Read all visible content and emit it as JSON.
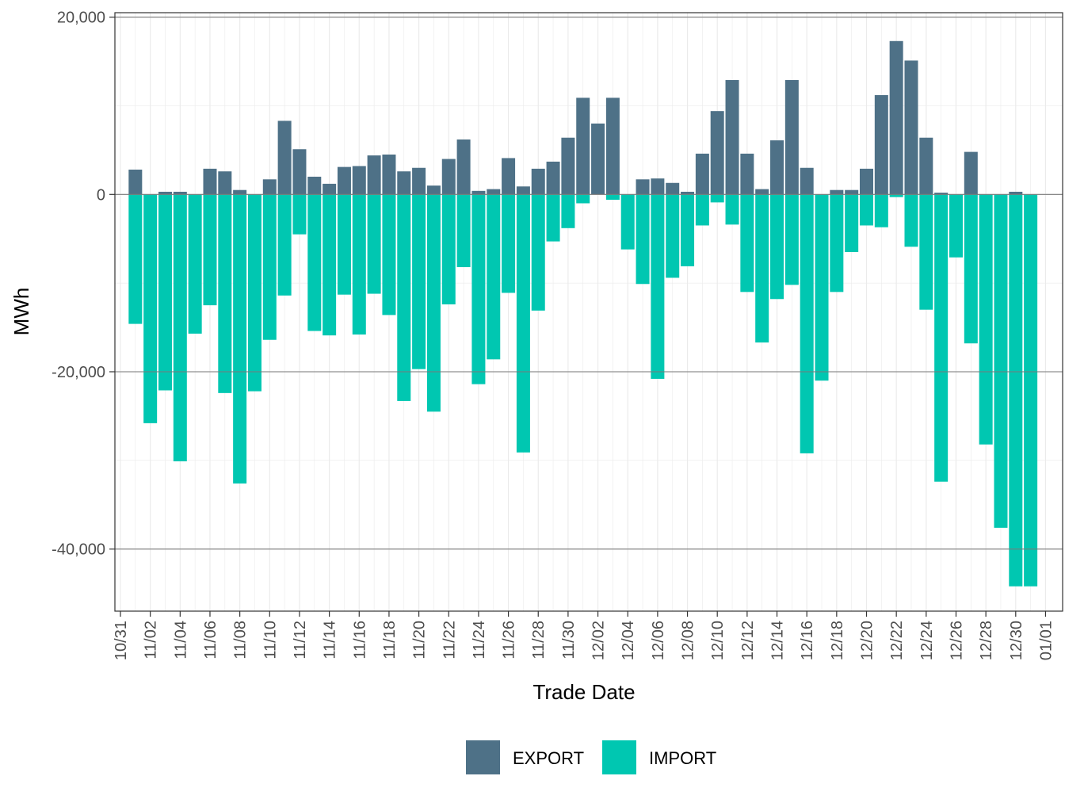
{
  "colors": {
    "export": "#4e7187",
    "import": "#00c7b1"
  },
  "chart_data": {
    "type": "bar",
    "title": "",
    "xlabel": "Trade Date",
    "ylabel": "MWh",
    "ylim": [
      -47000,
      20500
    ],
    "yticks": [
      20000,
      0,
      -20000,
      -40000
    ],
    "ytick_labels": [
      "20,000",
      "0",
      "-20,000",
      "-40,000"
    ],
    "xtick_labels": [
      "10/31",
      "11/02",
      "11/04",
      "11/06",
      "11/08",
      "11/10",
      "11/12",
      "11/14",
      "11/16",
      "11/18",
      "11/20",
      "11/22",
      "11/24",
      "11/26",
      "11/28",
      "11/30",
      "12/02",
      "12/04",
      "12/06",
      "12/08",
      "12/10",
      "12/12",
      "12/14",
      "12/16",
      "12/18",
      "12/20",
      "12/22",
      "12/24",
      "12/26",
      "12/28",
      "12/30",
      "01/01"
    ],
    "categories": [
      "11/01",
      "11/02",
      "11/03",
      "11/04",
      "11/05",
      "11/06",
      "11/07",
      "11/08",
      "11/09",
      "11/10",
      "11/11",
      "11/12",
      "11/13",
      "11/14",
      "11/15",
      "11/16",
      "11/17",
      "11/18",
      "11/19",
      "11/20",
      "11/21",
      "11/22",
      "11/23",
      "11/24",
      "11/25",
      "11/26",
      "11/27",
      "11/28",
      "11/29",
      "11/30",
      "12/01",
      "12/02",
      "12/03",
      "12/04",
      "12/05",
      "12/06",
      "12/07",
      "12/08",
      "12/09",
      "12/10",
      "12/11",
      "12/12",
      "12/13",
      "12/14",
      "12/15",
      "12/16",
      "12/17",
      "12/18",
      "12/19",
      "12/20",
      "12/21",
      "12/22",
      "12/23",
      "12/24",
      "12/25",
      "12/26",
      "12/27",
      "12/28",
      "12/29",
      "12/30",
      "12/31"
    ],
    "series": [
      {
        "name": "EXPORT",
        "values": [
          2800,
          0,
          300,
          300,
          0,
          2900,
          2600,
          500,
          0,
          1700,
          8300,
          5100,
          2000,
          1200,
          3100,
          3200,
          4400,
          4500,
          2600,
          3000,
          1000,
          4000,
          6200,
          400,
          600,
          4100,
          900,
          2900,
          3700,
          6400,
          10900,
          8000,
          10900,
          0,
          1700,
          1800,
          1300,
          300,
          4600,
          9400,
          12900,
          4600,
          600,
          6100,
          12900,
          3000,
          0,
          500,
          500,
          2900,
          11200,
          17300,
          15100,
          6400,
          200,
          0,
          4800,
          0,
          0,
          300,
          0
        ]
      },
      {
        "name": "IMPORT",
        "values": [
          -14600,
          -25800,
          -22100,
          -30100,
          -15700,
          -12500,
          -22400,
          -32600,
          -22200,
          -16400,
          -11400,
          -4500,
          -15400,
          -15900,
          -11300,
          -15800,
          -11200,
          -13600,
          -23300,
          -19700,
          -24500,
          -12400,
          -8200,
          -21400,
          -18600,
          -11100,
          -29100,
          -13100,
          -5300,
          -3800,
          -1000,
          0,
          -600,
          -6200,
          -10100,
          -20800,
          -9400,
          -8100,
          -3500,
          -900,
          -3400,
          -11000,
          -16700,
          -11800,
          -10200,
          -29200,
          -21000,
          -11000,
          -6500,
          -3500,
          -3700,
          -300,
          -5900,
          -13000,
          -32400,
          -7100,
          -16800,
          -28200,
          -37600,
          -44200,
          -44200
        ]
      }
    ],
    "legend_position": "bottom"
  }
}
